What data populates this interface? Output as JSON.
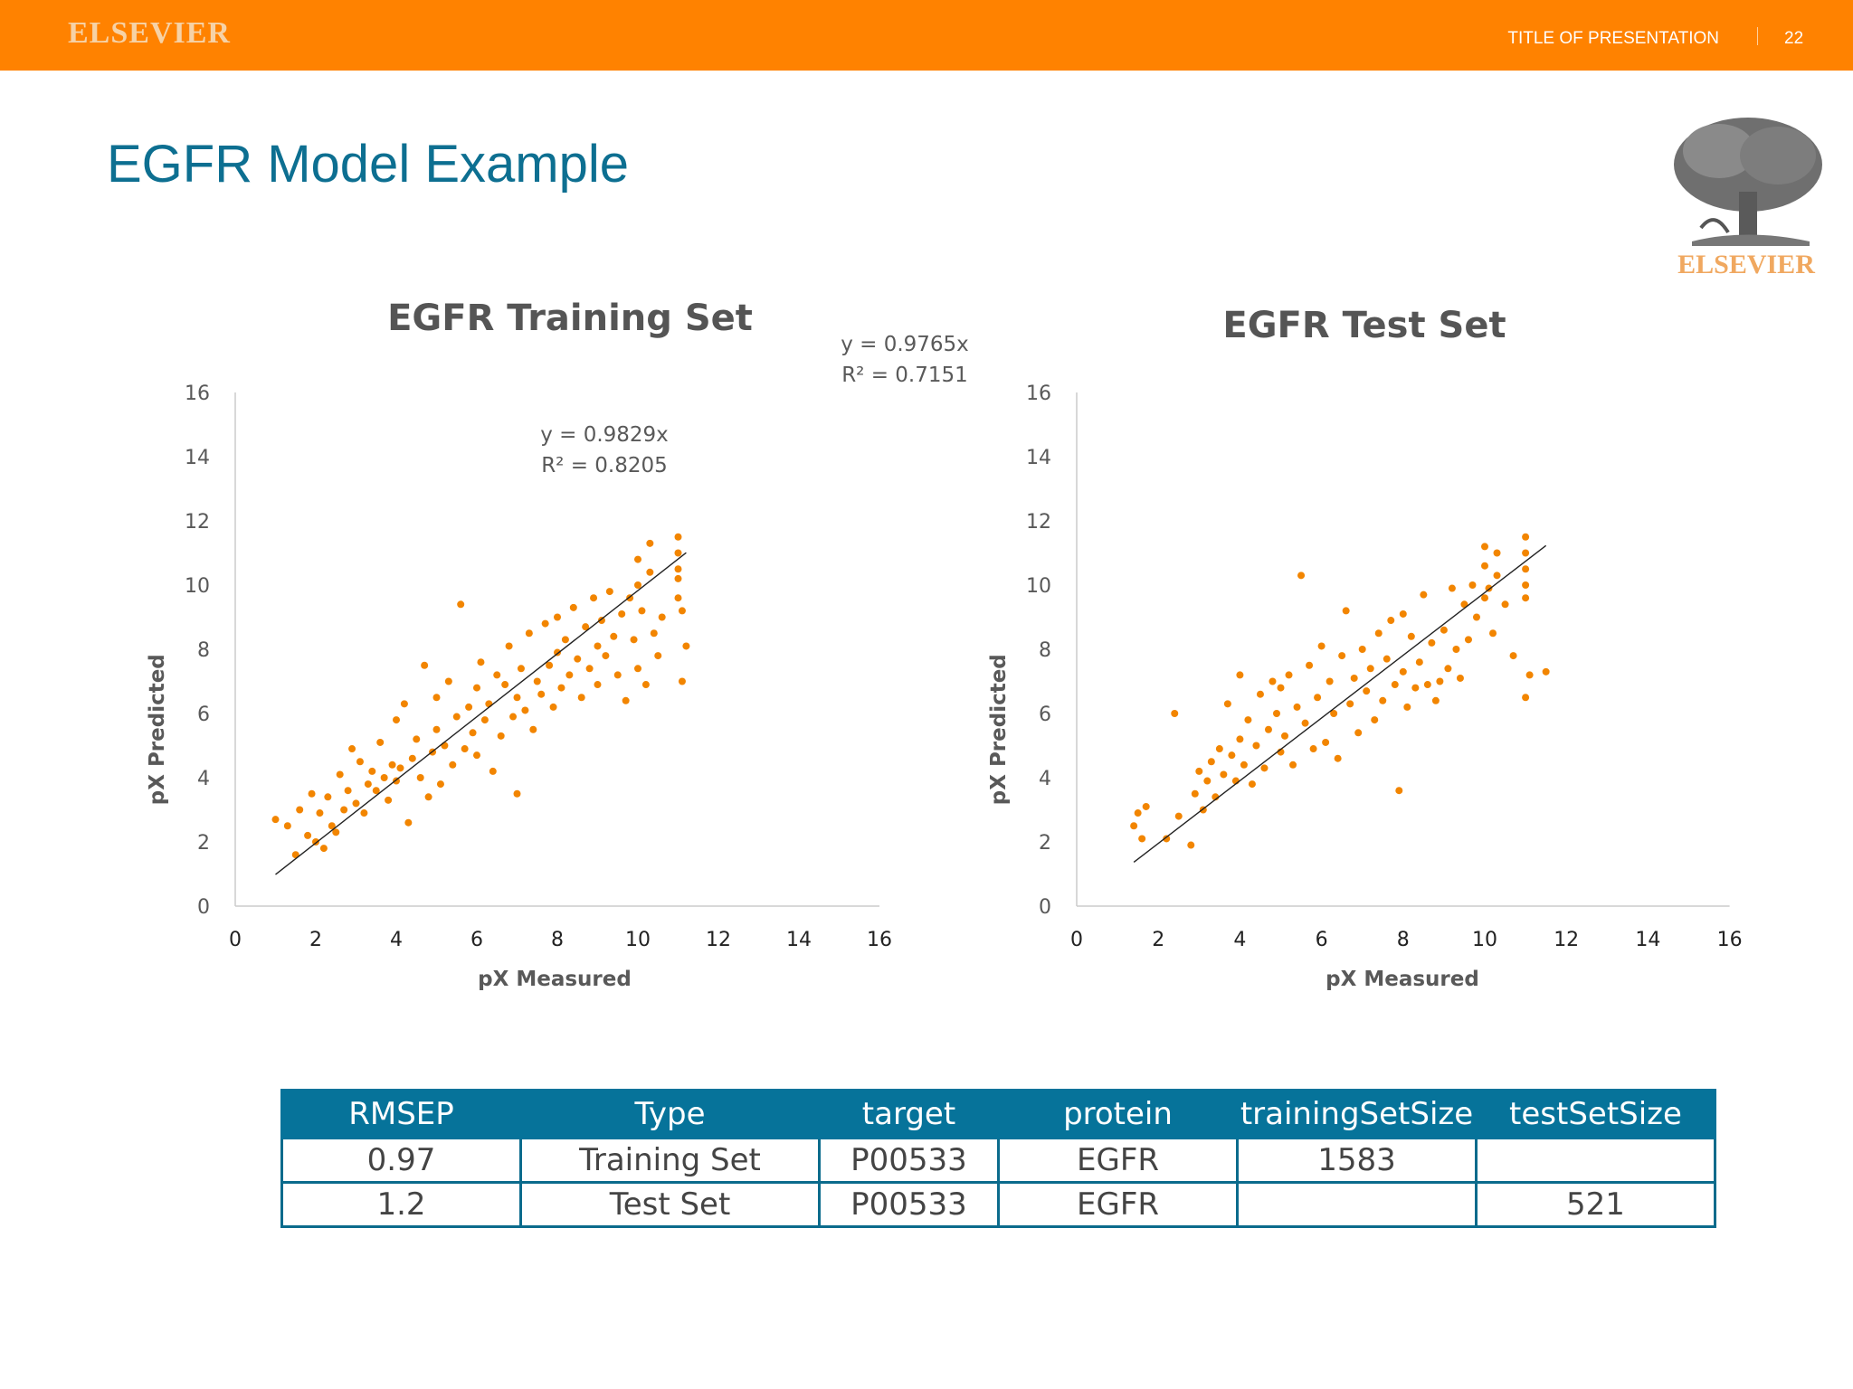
{
  "header": {
    "brand": "ELSEVIER",
    "presentation_title": "TITLE OF PRESENTATION",
    "page_number": "22",
    "accent_color": "#ff8200"
  },
  "slide": {
    "title": "EGFR Model Example",
    "logo_text": "ELSEVIER",
    "title_color": "#0d6f91"
  },
  "chart_data": [
    {
      "type": "scatter",
      "title": "EGFR Training Set",
      "xlabel": "pX  Measured",
      "ylabel": "pX Predicted",
      "xlim": [
        0,
        16
      ],
      "ylim": [
        0,
        16
      ],
      "xticks": [
        "0",
        "2",
        "4",
        "6",
        "8",
        "10",
        "12",
        "14",
        "16"
      ],
      "yticks": [
        "0",
        "2",
        "4",
        "6",
        "8",
        "10",
        "12",
        "14",
        "16"
      ],
      "trendline": {
        "slope": 0.9829,
        "x_range": [
          1.0,
          11.2
        ]
      },
      "equation": "y = 0.9829x",
      "r2": "R² = 0.8205",
      "grid": false,
      "marker_color": "#f28500",
      "points": [
        [
          1.0,
          2.7
        ],
        [
          1.3,
          2.5
        ],
        [
          1.5,
          1.6
        ],
        [
          1.6,
          3.0
        ],
        [
          1.8,
          2.2
        ],
        [
          1.9,
          3.5
        ],
        [
          2.0,
          2.0
        ],
        [
          2.1,
          2.9
        ],
        [
          2.2,
          1.8
        ],
        [
          2.3,
          3.4
        ],
        [
          2.4,
          2.5
        ],
        [
          2.5,
          2.3
        ],
        [
          2.6,
          4.1
        ],
        [
          2.7,
          3.0
        ],
        [
          2.8,
          3.6
        ],
        [
          2.9,
          4.9
        ],
        [
          3.0,
          3.2
        ],
        [
          3.1,
          4.5
        ],
        [
          3.2,
          2.9
        ],
        [
          3.3,
          3.8
        ],
        [
          3.4,
          4.2
        ],
        [
          3.5,
          3.6
        ],
        [
          3.6,
          5.1
        ],
        [
          3.7,
          4.0
        ],
        [
          3.8,
          3.3
        ],
        [
          3.9,
          4.4
        ],
        [
          4.0,
          3.9
        ],
        [
          4.0,
          5.8
        ],
        [
          4.1,
          4.3
        ],
        [
          4.2,
          6.3
        ],
        [
          4.3,
          2.6
        ],
        [
          4.4,
          4.6
        ],
        [
          4.5,
          5.2
        ],
        [
          4.6,
          4.0
        ],
        [
          4.7,
          7.5
        ],
        [
          4.8,
          3.4
        ],
        [
          4.9,
          4.8
        ],
        [
          5.0,
          5.5
        ],
        [
          5.0,
          6.5
        ],
        [
          5.1,
          3.8
        ],
        [
          5.2,
          5.0
        ],
        [
          5.3,
          7.0
        ],
        [
          5.4,
          4.4
        ],
        [
          5.5,
          5.9
        ],
        [
          5.6,
          9.4
        ],
        [
          5.7,
          4.9
        ],
        [
          5.8,
          6.2
        ],
        [
          5.9,
          5.4
        ],
        [
          6.0,
          6.8
        ],
        [
          6.0,
          4.7
        ],
        [
          6.1,
          7.6
        ],
        [
          6.2,
          5.8
        ],
        [
          6.3,
          6.3
        ],
        [
          6.4,
          4.2
        ],
        [
          6.5,
          7.2
        ],
        [
          6.6,
          5.3
        ],
        [
          6.7,
          6.9
        ],
        [
          6.8,
          8.1
        ],
        [
          6.9,
          5.9
        ],
        [
          7.0,
          6.5
        ],
        [
          7.0,
          3.5
        ],
        [
          7.1,
          7.4
        ],
        [
          7.2,
          6.1
        ],
        [
          7.3,
          8.5
        ],
        [
          7.4,
          5.5
        ],
        [
          7.5,
          7.0
        ],
        [
          7.6,
          6.6
        ],
        [
          7.7,
          8.8
        ],
        [
          7.8,
          7.5
        ],
        [
          7.9,
          6.2
        ],
        [
          8.0,
          7.9
        ],
        [
          8.0,
          9.0
        ],
        [
          8.1,
          6.8
        ],
        [
          8.2,
          8.3
        ],
        [
          8.3,
          7.2
        ],
        [
          8.4,
          9.3
        ],
        [
          8.5,
          7.7
        ],
        [
          8.6,
          6.5
        ],
        [
          8.7,
          8.7
        ],
        [
          8.8,
          7.4
        ],
        [
          8.9,
          9.6
        ],
        [
          9.0,
          8.1
        ],
        [
          9.0,
          6.9
        ],
        [
          9.1,
          8.9
        ],
        [
          9.2,
          7.8
        ],
        [
          9.3,
          9.8
        ],
        [
          9.4,
          8.4
        ],
        [
          9.5,
          7.2
        ],
        [
          9.6,
          9.1
        ],
        [
          9.7,
          6.4
        ],
        [
          9.8,
          9.6
        ],
        [
          9.9,
          8.3
        ],
        [
          10.0,
          10.0
        ],
        [
          10.0,
          7.4
        ],
        [
          10.0,
          10.8
        ],
        [
          10.1,
          9.2
        ],
        [
          10.2,
          6.9
        ],
        [
          10.3,
          10.4
        ],
        [
          10.3,
          11.3
        ],
        [
          10.4,
          8.5
        ],
        [
          10.5,
          7.8
        ],
        [
          10.6,
          9.0
        ],
        [
          11.0,
          11.5
        ],
        [
          11.0,
          11.0
        ],
        [
          11.0,
          10.5
        ],
        [
          11.0,
          9.6
        ],
        [
          11.0,
          10.2
        ],
        [
          11.1,
          9.2
        ],
        [
          11.1,
          7.0
        ],
        [
          11.2,
          8.1
        ]
      ]
    },
    {
      "type": "scatter",
      "title": "EGFR Test Set",
      "xlabel": "pX  Measured",
      "ylabel": "pX Predicted",
      "xlim": [
        0,
        16
      ],
      "ylim": [
        0,
        16
      ],
      "xticks": [
        "0",
        "2",
        "4",
        "6",
        "8",
        "10",
        "12",
        "14",
        "16"
      ],
      "yticks": [
        "0",
        "2",
        "4",
        "6",
        "8",
        "10",
        "12",
        "14",
        "16"
      ],
      "trendline": {
        "slope": 0.9765,
        "x_range": [
          1.4,
          11.5
        ]
      },
      "equation": "y = 0.9765x",
      "r2": "R² = 0.7151",
      "grid": false,
      "marker_color": "#f28500",
      "points": [
        [
          1.4,
          2.5
        ],
        [
          1.5,
          2.9
        ],
        [
          1.6,
          2.1
        ],
        [
          1.7,
          3.1
        ],
        [
          2.2,
          2.1
        ],
        [
          2.4,
          6.0
        ],
        [
          2.5,
          2.8
        ],
        [
          2.8,
          1.9
        ],
        [
          2.9,
          3.5
        ],
        [
          3.0,
          4.2
        ],
        [
          3.1,
          3.0
        ],
        [
          3.2,
          3.9
        ],
        [
          3.3,
          4.5
        ],
        [
          3.4,
          3.4
        ],
        [
          3.5,
          4.9
        ],
        [
          3.6,
          4.1
        ],
        [
          3.7,
          6.3
        ],
        [
          3.8,
          4.7
        ],
        [
          3.9,
          3.9
        ],
        [
          4.0,
          5.2
        ],
        [
          4.0,
          7.2
        ],
        [
          4.1,
          4.4
        ],
        [
          4.2,
          5.8
        ],
        [
          4.3,
          3.8
        ],
        [
          4.4,
          5.0
        ],
        [
          4.5,
          6.6
        ],
        [
          4.6,
          4.3
        ],
        [
          4.7,
          5.5
        ],
        [
          4.8,
          7.0
        ],
        [
          4.9,
          6.0
        ],
        [
          5.0,
          4.8
        ],
        [
          5.0,
          6.8
        ],
        [
          5.1,
          5.3
        ],
        [
          5.2,
          7.2
        ],
        [
          5.3,
          4.4
        ],
        [
          5.4,
          6.2
        ],
        [
          5.5,
          10.3
        ],
        [
          5.6,
          5.7
        ],
        [
          5.7,
          7.5
        ],
        [
          5.8,
          4.9
        ],
        [
          5.9,
          6.5
        ],
        [
          6.0,
          8.1
        ],
        [
          6.1,
          5.1
        ],
        [
          6.2,
          7.0
        ],
        [
          6.3,
          6.0
        ],
        [
          6.4,
          4.6
        ],
        [
          6.5,
          7.8
        ],
        [
          6.6,
          9.2
        ],
        [
          6.7,
          6.3
        ],
        [
          6.8,
          7.1
        ],
        [
          6.9,
          5.4
        ],
        [
          7.0,
          8.0
        ],
        [
          7.1,
          6.7
        ],
        [
          7.2,
          7.4
        ],
        [
          7.3,
          5.8
        ],
        [
          7.4,
          8.5
        ],
        [
          7.5,
          6.4
        ],
        [
          7.6,
          7.7
        ],
        [
          7.7,
          8.9
        ],
        [
          7.8,
          6.9
        ],
        [
          7.9,
          3.6
        ],
        [
          8.0,
          7.3
        ],
        [
          8.0,
          9.1
        ],
        [
          8.1,
          6.2
        ],
        [
          8.2,
          8.4
        ],
        [
          8.3,
          6.8
        ],
        [
          8.4,
          7.6
        ],
        [
          8.5,
          9.7
        ],
        [
          8.6,
          6.9
        ],
        [
          8.7,
          8.2
        ],
        [
          8.8,
          6.4
        ],
        [
          8.9,
          7.0
        ],
        [
          9.0,
          8.6
        ],
        [
          9.1,
          7.4
        ],
        [
          9.2,
          9.9
        ],
        [
          9.3,
          8.0
        ],
        [
          9.4,
          7.1
        ],
        [
          9.5,
          9.4
        ],
        [
          9.6,
          8.3
        ],
        [
          9.7,
          10.0
        ],
        [
          9.8,
          9.0
        ],
        [
          10.0,
          11.2
        ],
        [
          10.0,
          10.6
        ],
        [
          10.0,
          9.6
        ],
        [
          10.1,
          9.9
        ],
        [
          10.2,
          8.5
        ],
        [
          10.3,
          11.0
        ],
        [
          10.3,
          10.3
        ],
        [
          10.5,
          9.4
        ],
        [
          10.7,
          7.8
        ],
        [
          11.0,
          11.5
        ],
        [
          11.0,
          11.0
        ],
        [
          11.0,
          10.5
        ],
        [
          11.0,
          10.0
        ],
        [
          11.0,
          9.6
        ],
        [
          11.1,
          7.2
        ],
        [
          11.0,
          6.5
        ],
        [
          11.5,
          7.3
        ]
      ]
    }
  ],
  "table": {
    "columns": [
      "RMSEP",
      "Type",
      "target",
      "protein",
      "trainingSetSize",
      "testSetSize"
    ],
    "rows": [
      [
        "0.97",
        "Training Set",
        "P00533",
        "EGFR",
        "1583",
        ""
      ],
      [
        "1.2",
        "Test Set",
        "P00533",
        "EGFR",
        "",
        "521"
      ]
    ],
    "header_color": "#06739a"
  }
}
